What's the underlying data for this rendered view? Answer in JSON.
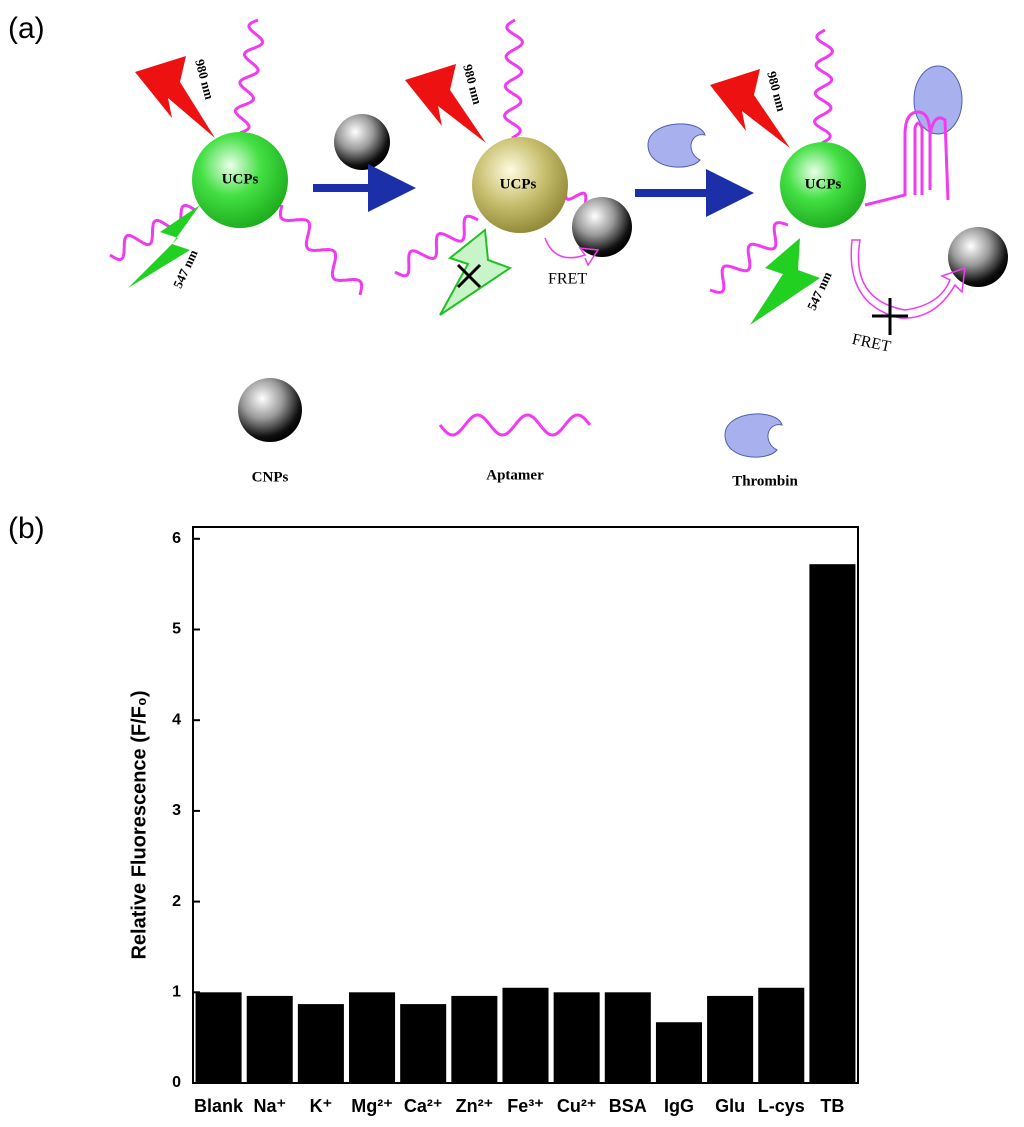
{
  "panel_labels": [
    "(a)",
    "(b)"
  ],
  "diagram": {
    "particle_labels": [
      "UCPs",
      "UCPs",
      "UCPs"
    ],
    "excitation_labels": [
      "980 nm",
      "980 nm",
      "980 nm"
    ],
    "emission_labels": [
      "547 nm",
      "547 nm"
    ],
    "fret_labels": [
      "FRET",
      "FRET"
    ],
    "legend": [
      "CNPs",
      "Aptamer",
      "Thrombin"
    ]
  },
  "chart_data": {
    "type": "bar",
    "categories": [
      "Blank",
      "Na⁺",
      "K⁺",
      "Mg²⁺",
      "Ca²⁺",
      "Zn²⁺",
      "Fe³⁺",
      "Cu²⁺",
      "BSA",
      "IgG",
      "Glu",
      "L-cys",
      "TB"
    ],
    "values": [
      1.0,
      0.96,
      0.87,
      1.0,
      0.87,
      0.96,
      1.05,
      1.0,
      1.0,
      0.67,
      0.96,
      1.05,
      5.72
    ],
    "color": "#000000",
    "ylabel": "Relative Fluorescence (F/F₀)",
    "ylim": [
      0,
      6.13
    ],
    "yticks": [
      0,
      1,
      2,
      3,
      4,
      5,
      6
    ]
  }
}
